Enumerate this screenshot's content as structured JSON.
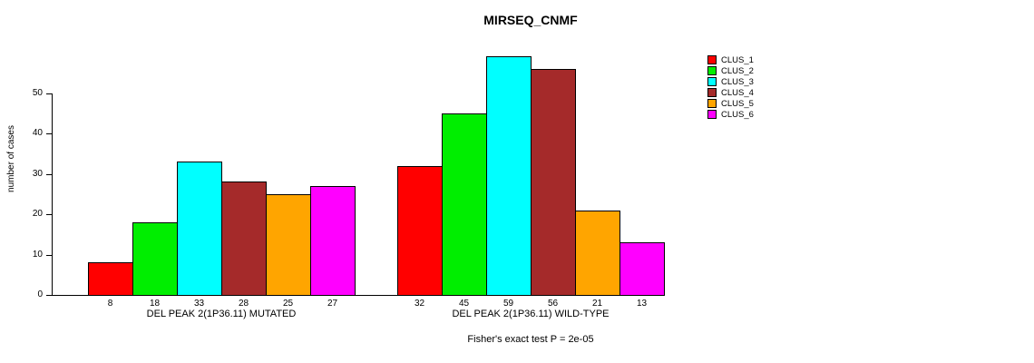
{
  "chart_data": {
    "type": "bar",
    "title": "MIRSEQ_CNMF",
    "ylabel": "number of cases",
    "xlabel": "",
    "caption": "Fisher's exact test P = 2e-05",
    "ylim": [
      0,
      59
    ],
    "yticks": [
      0,
      10,
      20,
      30,
      40,
      50
    ],
    "grid": "off",
    "legend_position": "right",
    "legend": [
      "CLUS_1",
      "CLUS_2",
      "CLUS_3",
      "CLUS_4",
      "CLUS_5",
      "CLUS_6"
    ],
    "colors": [
      "#ff0000",
      "#00ee00",
      "#00ffff",
      "#a52a2a",
      "#ffa500",
      "#ff00ff"
    ],
    "groups": [
      {
        "label": "DEL PEAK 2(1P36.11) MUTATED",
        "values": [
          8,
          18,
          33,
          28,
          25,
          27
        ]
      },
      {
        "label": "DEL PEAK 2(1P36.11) WILD-TYPE",
        "values": [
          32,
          45,
          59,
          56,
          21,
          13
        ]
      }
    ]
  }
}
